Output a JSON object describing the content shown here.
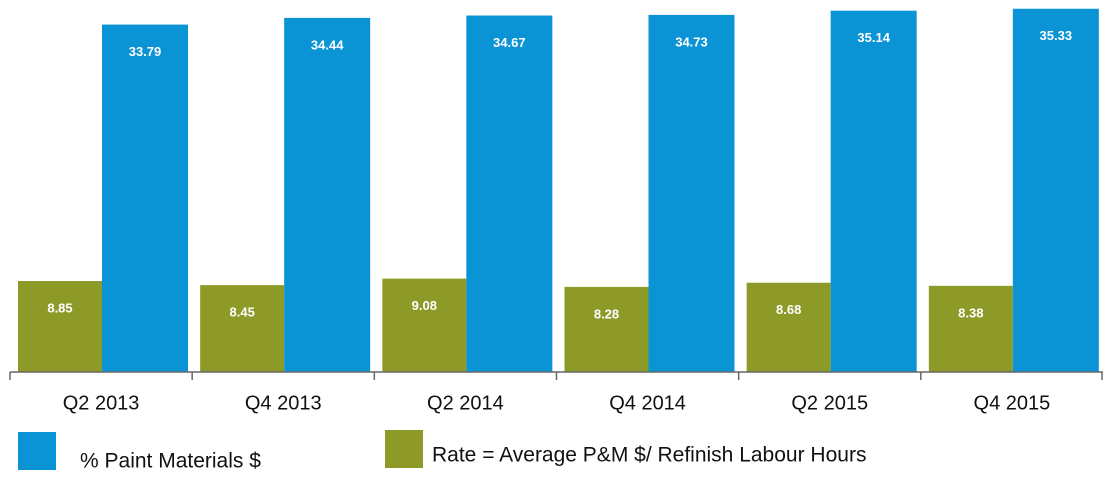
{
  "chart_data": {
    "type": "bar",
    "categories": [
      "Q2 2013",
      "Q4 2013",
      "Q2 2014",
      "Q4 2014",
      "Q2 2015",
      "Q4 2015"
    ],
    "series": [
      {
        "name": "Rate = Average P&M $/ Refinish Labour Hours",
        "color": "#8d9a28",
        "values": [
          8.85,
          8.45,
          9.08,
          8.28,
          8.68,
          8.38
        ]
      },
      {
        "name": "% Paint Materials $",
        "color": "#0a93d5",
        "values": [
          33.79,
          34.44,
          34.67,
          34.73,
          35.14,
          35.33
        ]
      }
    ],
    "ylim": [
      0,
      35.5
    ]
  }
}
